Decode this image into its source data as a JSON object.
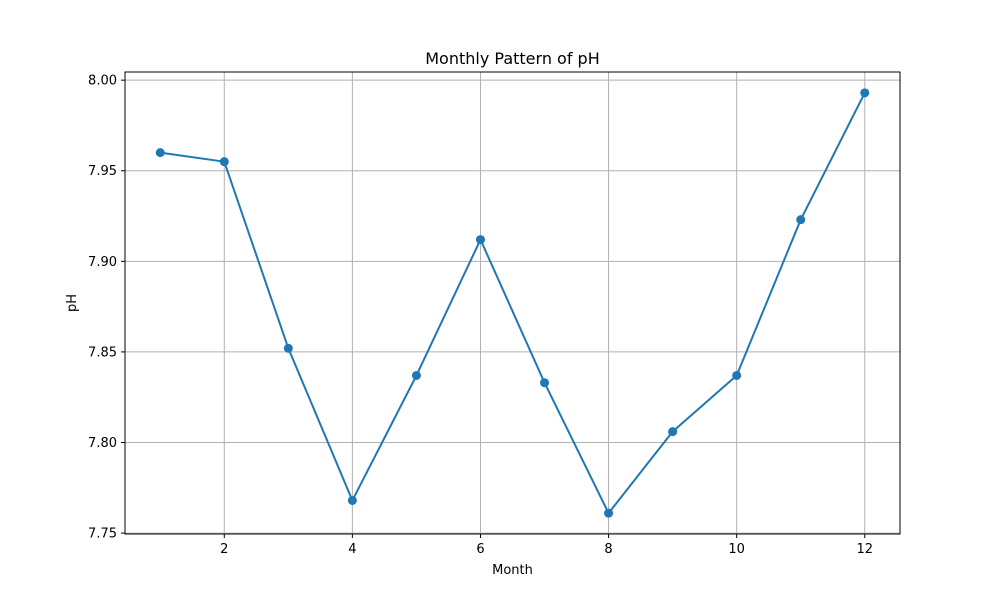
{
  "chart_data": {
    "type": "line",
    "title": "Monthly Pattern of pH",
    "xlabel": "Month",
    "ylabel": "pH",
    "xlim": [
      0.45,
      12.55
    ],
    "ylim": [
      7.7495,
      8.0045
    ],
    "xticks": [
      2,
      4,
      6,
      8,
      10,
      12
    ],
    "yticks": [
      7.75,
      7.8,
      7.85,
      7.9,
      7.95,
      8.0
    ],
    "xtick_labels": [
      "2",
      "4",
      "6",
      "8",
      "10",
      "12"
    ],
    "ytick_labels": [
      "7.75",
      "7.80",
      "7.85",
      "7.90",
      "7.95",
      "8.00"
    ],
    "grid": true,
    "series": [
      {
        "color": "#1f77b4",
        "marker": "circle",
        "x": [
          1,
          2,
          3,
          4,
          5,
          6,
          7,
          8,
          9,
          10,
          11,
          12
        ],
        "y": [
          7.96,
          7.955,
          7.852,
          7.768,
          7.837,
          7.912,
          7.833,
          7.761,
          7.806,
          7.837,
          7.923,
          7.993
        ]
      }
    ]
  }
}
